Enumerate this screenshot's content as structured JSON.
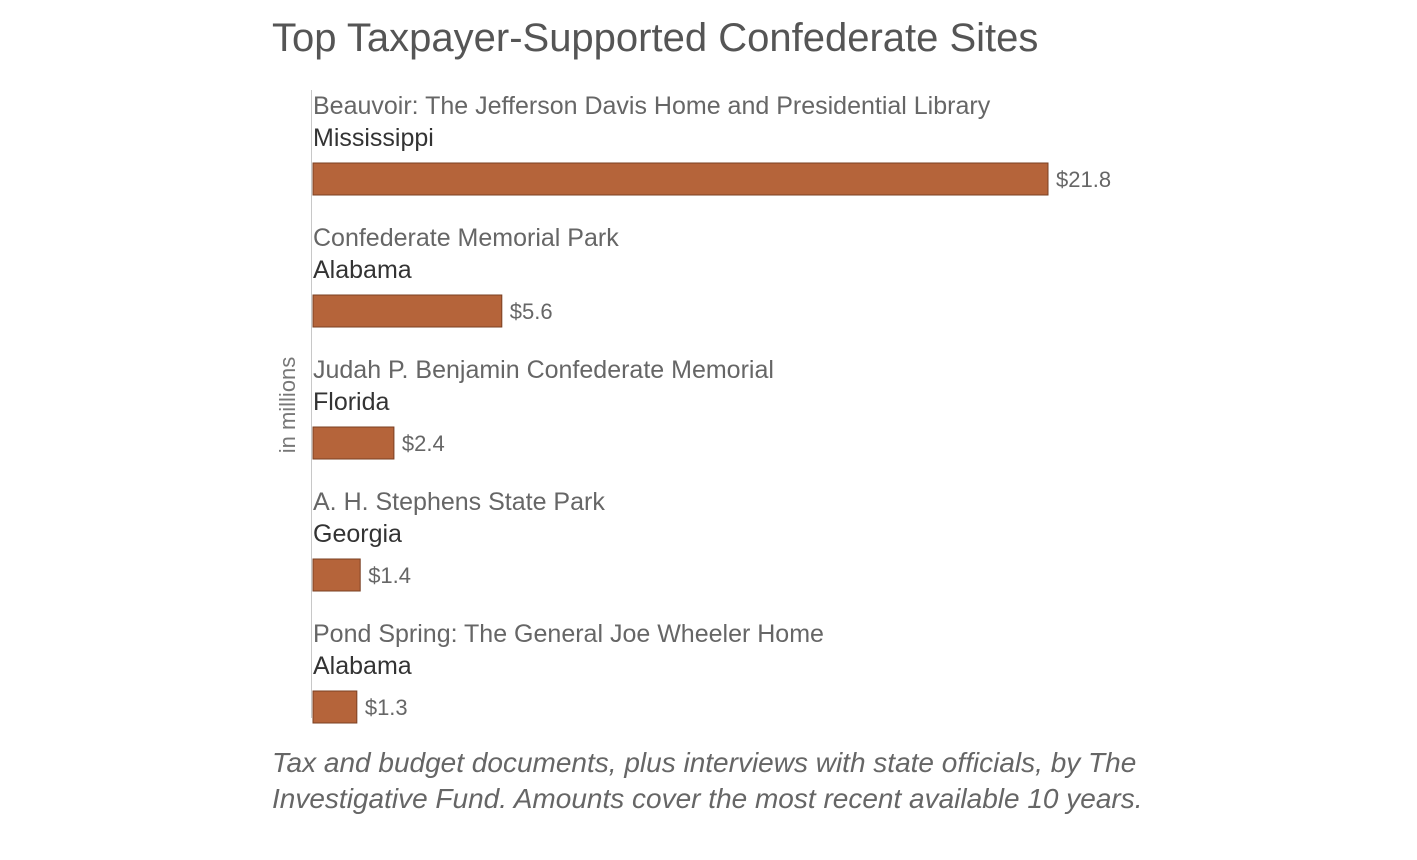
{
  "chart_data": {
    "type": "bar",
    "orientation": "horizontal",
    "title": "Top Taxpayer-Supported Confederate Sites",
    "ylabel": "in millions",
    "categories": [
      "Beauvoir: The Jefferson Davis Home and Presidential Library",
      "Confederate Memorial Park",
      "Judah P. Benjamin Confederate Memorial",
      "A. H. Stephens State Park",
      "Pond Spring: The General Joe Wheeler Home"
    ],
    "states": [
      "Mississippi",
      "Alabama",
      "Florida",
      "Georgia",
      "Alabama"
    ],
    "values": [
      21.8,
      5.6,
      2.4,
      1.4,
      1.3
    ],
    "value_labels": [
      "$21.8",
      "$5.6",
      "$2.4",
      "$1.4",
      "$1.3"
    ],
    "xlim": [
      0,
      21.8
    ],
    "grid": false,
    "bar_color": "#b5643a"
  },
  "footnote": "Tax and budget documents, plus interviews with state officials, by The Investigative Fund. Amounts cover the most recent available 10 years."
}
